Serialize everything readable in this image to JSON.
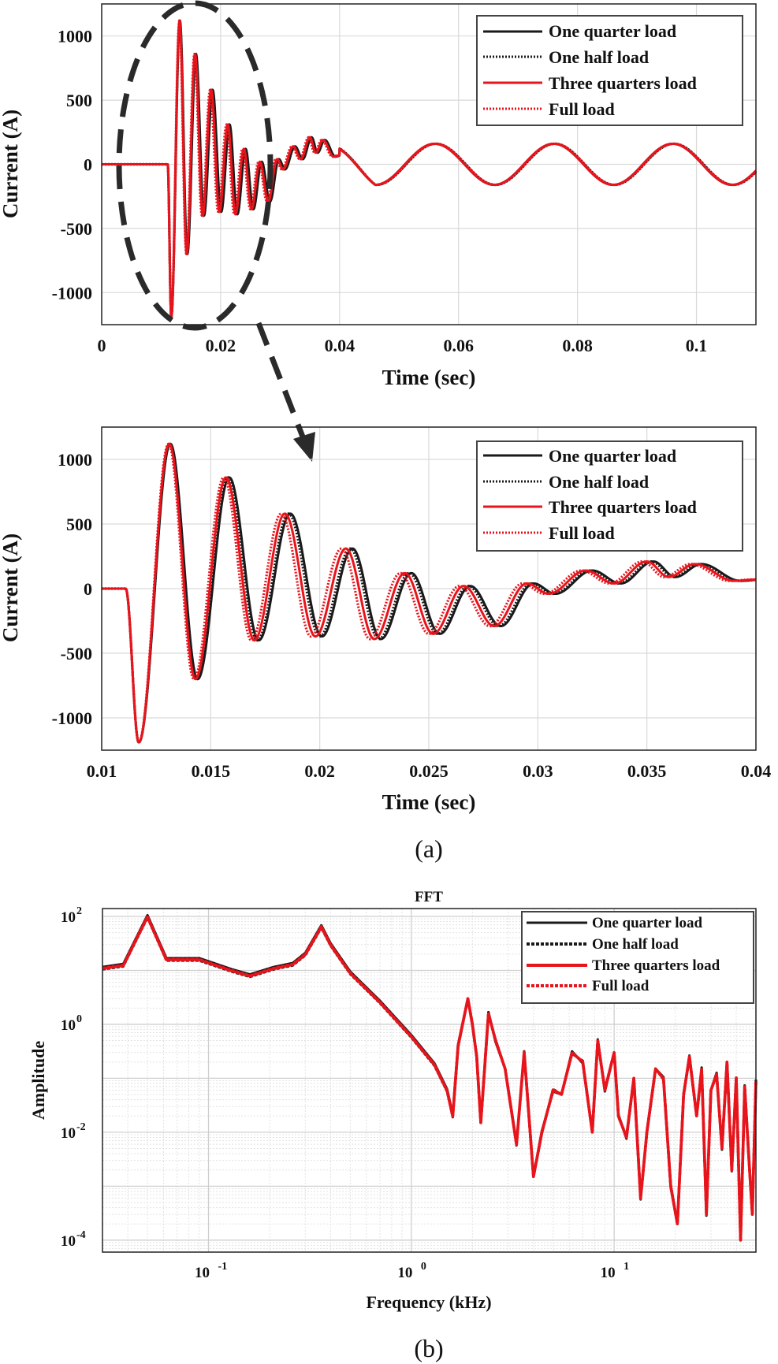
{
  "chart_data": [
    {
      "type": "line",
      "id": "top",
      "xlabel": "Time (sec)",
      "ylabel": "Current (A)",
      "xlim": [
        0,
        0.11
      ],
      "ylim": [
        -1250,
        1250
      ],
      "xticks": [
        0,
        0.02,
        0.04,
        0.06,
        0.08,
        0.1
      ],
      "xtick_labels": [
        "0",
        "0.02",
        "0.04",
        "0.06",
        "0.08",
        "0.1"
      ],
      "yticks": [
        -1000,
        -500,
        0,
        500,
        1000
      ],
      "ytick_labels": [
        "-1000",
        "-500",
        "0",
        "500",
        "1000"
      ],
      "grid": true,
      "legend_position": "top-right",
      "fault_time": 0.0111,
      "steady_amplitude": 160,
      "steady_frequency_hz": 50,
      "transient_peaks": [
        1130,
        -1180,
        870,
        -700,
        600,
        -420,
        330,
        -370,
        210,
        -350,
        120,
        -270,
        60,
        -230
      ],
      "series": [
        {
          "name": "One quarter load",
          "style": "solid",
          "color": "#1a1a1a"
        },
        {
          "name": "One half load",
          "style": "dotted",
          "color": "#1a1a1a"
        },
        {
          "name": "Three quarters load",
          "style": "solid",
          "color": "#e8141c"
        },
        {
          "name": "Full load",
          "style": "dotted",
          "color": "#e8141c"
        }
      ]
    },
    {
      "type": "line",
      "id": "zoom",
      "xlabel": "Time (sec)",
      "ylabel": "Current (A)",
      "xlim": [
        0.01,
        0.04
      ],
      "ylim": [
        -1250,
        1250
      ],
      "xticks": [
        0.01,
        0.015,
        0.02,
        0.025,
        0.03,
        0.035,
        0.04
      ],
      "xtick_labels": [
        "0.01",
        "0.015",
        "0.02",
        "0.025",
        "0.03",
        "0.035",
        "0.04"
      ],
      "yticks": [
        -1000,
        -500,
        0,
        500,
        1000
      ],
      "ytick_labels": [
        "-1000",
        "-500",
        "0",
        "500",
        "1000"
      ],
      "grid": true,
      "legend_position": "top-right",
      "peaks": [
        {
          "t": 0.0117,
          "v": -1190
        },
        {
          "t": 0.0131,
          "v": 1120
        },
        {
          "t": 0.0143,
          "v": -700
        },
        {
          "t": 0.0157,
          "v": 860
        },
        {
          "t": 0.017,
          "v": -400
        },
        {
          "t": 0.0184,
          "v": 580
        },
        {
          "t": 0.0198,
          "v": -370
        },
        {
          "t": 0.0212,
          "v": 310
        },
        {
          "t": 0.0225,
          "v": -390
        },
        {
          "t": 0.0239,
          "v": 120
        },
        {
          "t": 0.0252,
          "v": -350
        },
        {
          "t": 0.0266,
          "v": 20
        },
        {
          "t": 0.028,
          "v": -290
        },
        {
          "t": 0.0295,
          "v": 40
        },
        {
          "t": 0.0305,
          "v": -40
        },
        {
          "t": 0.0322,
          "v": 140
        },
        {
          "t": 0.0335,
          "v": 40
        },
        {
          "t": 0.035,
          "v": 210
        },
        {
          "t": 0.036,
          "v": 90
        },
        {
          "t": 0.0372,
          "v": 190
        },
        {
          "t": 0.039,
          "v": 60
        },
        {
          "t": 0.04,
          "v": 70
        }
      ],
      "series": [
        {
          "name": "One quarter load",
          "style": "solid",
          "color": "#1a1a1a",
          "lag": 0.0003
        },
        {
          "name": "One half load",
          "style": "dotted",
          "color": "#1a1a1a",
          "lag": 0.0002
        },
        {
          "name": "Three quarters load",
          "style": "solid",
          "color": "#e8141c",
          "lag": 0.0
        },
        {
          "name": "Full load",
          "style": "dotted",
          "color": "#e8141c",
          "lag": -0.0002
        }
      ]
    },
    {
      "type": "line",
      "id": "fft",
      "scale": "loglog",
      "title": "FFT",
      "xlabel": "Frequency (kHz)",
      "ylabel": "Amplitude",
      "xlim": [
        0.03,
        50
      ],
      "ylim": [
        6e-05,
        140
      ],
      "xticks": [
        0.1,
        1,
        10
      ],
      "xtick_base": [
        "10",
        "10",
        "10"
      ],
      "xtick_exp": [
        "-1",
        "0",
        "1"
      ],
      "yticks": [
        0.0001,
        0.01,
        1,
        100
      ],
      "ytick_base": [
        "10",
        "10",
        "10",
        "10"
      ],
      "ytick_exp": [
        "-4",
        "-2",
        "0",
        "2"
      ],
      "grid": true,
      "legend_position": "top-right",
      "points": [
        [
          0.03,
          11
        ],
        [
          0.038,
          12.5
        ],
        [
          0.05,
          100
        ],
        [
          0.062,
          16
        ],
        [
          0.09,
          16
        ],
        [
          0.13,
          10
        ],
        [
          0.16,
          8
        ],
        [
          0.21,
          11
        ],
        [
          0.26,
          13
        ],
        [
          0.3,
          20
        ],
        [
          0.36,
          65
        ],
        [
          0.4,
          30
        ],
        [
          0.5,
          9
        ],
        [
          0.7,
          2.6
        ],
        [
          1.0,
          0.6
        ],
        [
          1.3,
          0.18
        ],
        [
          1.5,
          0.06
        ],
        [
          1.6,
          0.02
        ],
        [
          1.7,
          0.4
        ],
        [
          1.9,
          3.0
        ],
        [
          2.0,
          1.0
        ],
        [
          2.1,
          0.25
        ],
        [
          2.2,
          0.015
        ],
        [
          2.4,
          1.6
        ],
        [
          2.6,
          0.5
        ],
        [
          2.9,
          0.15
        ],
        [
          3.3,
          0.006
        ],
        [
          3.6,
          0.3
        ],
        [
          4.0,
          0.0015
        ],
        [
          4.4,
          0.01
        ],
        [
          5.0,
          0.06
        ],
        [
          5.5,
          0.05
        ],
        [
          6.2,
          0.3
        ],
        [
          7.0,
          0.2
        ],
        [
          7.8,
          0.01
        ],
        [
          8.3,
          0.5
        ],
        [
          9.0,
          0.06
        ],
        [
          10.0,
          0.3
        ],
        [
          10.5,
          0.02
        ],
        [
          11.5,
          0.008
        ],
        [
          12.5,
          0.1
        ],
        [
          13.5,
          0.0006
        ],
        [
          14.5,
          0.01
        ],
        [
          16,
          0.15
        ],
        [
          17.5,
          0.1
        ],
        [
          19,
          0.001
        ],
        [
          20.5,
          0.0002
        ],
        [
          22,
          0.05
        ],
        [
          23.5,
          0.25
        ],
        [
          25.5,
          0.02
        ],
        [
          27,
          0.15
        ],
        [
          28.5,
          0.0003
        ],
        [
          30,
          0.06
        ],
        [
          32,
          0.12
        ],
        [
          34,
          0.005
        ],
        [
          36,
          0.2
        ],
        [
          38,
          0.002
        ],
        [
          40,
          0.1
        ],
        [
          42,
          0.0001
        ],
        [
          44,
          0.07
        ],
        [
          46,
          0.004
        ],
        [
          48,
          0.0003
        ],
        [
          50,
          0.09
        ]
      ],
      "series": [
        {
          "name": "One quarter load",
          "style": "solid",
          "color": "#1a1a1a"
        },
        {
          "name": "One half load",
          "style": "dotted",
          "color": "#1a1a1a"
        },
        {
          "name": "Three quarters load",
          "style": "solid",
          "color": "#e8141c"
        },
        {
          "name": "Full load",
          "style": "dotted",
          "color": "#e8141c"
        }
      ]
    }
  ],
  "captions": {
    "a": "(a)",
    "b": "(b)"
  },
  "colors": {
    "black": "#1a1a1a",
    "red": "#e8141c",
    "grid": "#d9d9d9",
    "frame": "#222222"
  }
}
